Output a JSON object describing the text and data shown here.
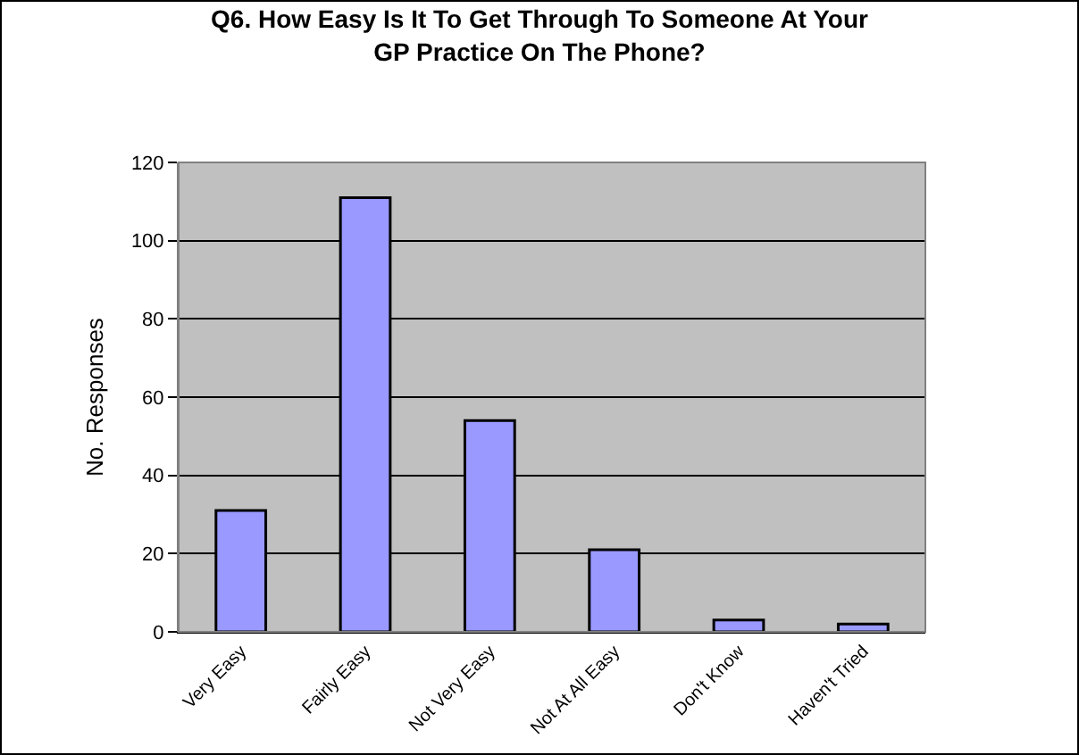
{
  "chart_data": {
    "type": "bar",
    "title": "Q6. How Easy Is It To Get Through To Someone At Your GP Practice On The Phone?",
    "ylabel": "No. Responses",
    "categories": [
      "Very Easy",
      "Fairly Easy",
      "Not Very Easy",
      "Not At All Easy",
      "Don't Know",
      "Haven't Tried"
    ],
    "values": [
      31,
      111,
      54,
      21,
      3,
      2
    ],
    "color": "#9999ff",
    "ylim": [
      0,
      120
    ],
    "yticks": [
      0,
      20,
      40,
      60,
      80,
      100,
      120
    ],
    "grid": "y"
  }
}
